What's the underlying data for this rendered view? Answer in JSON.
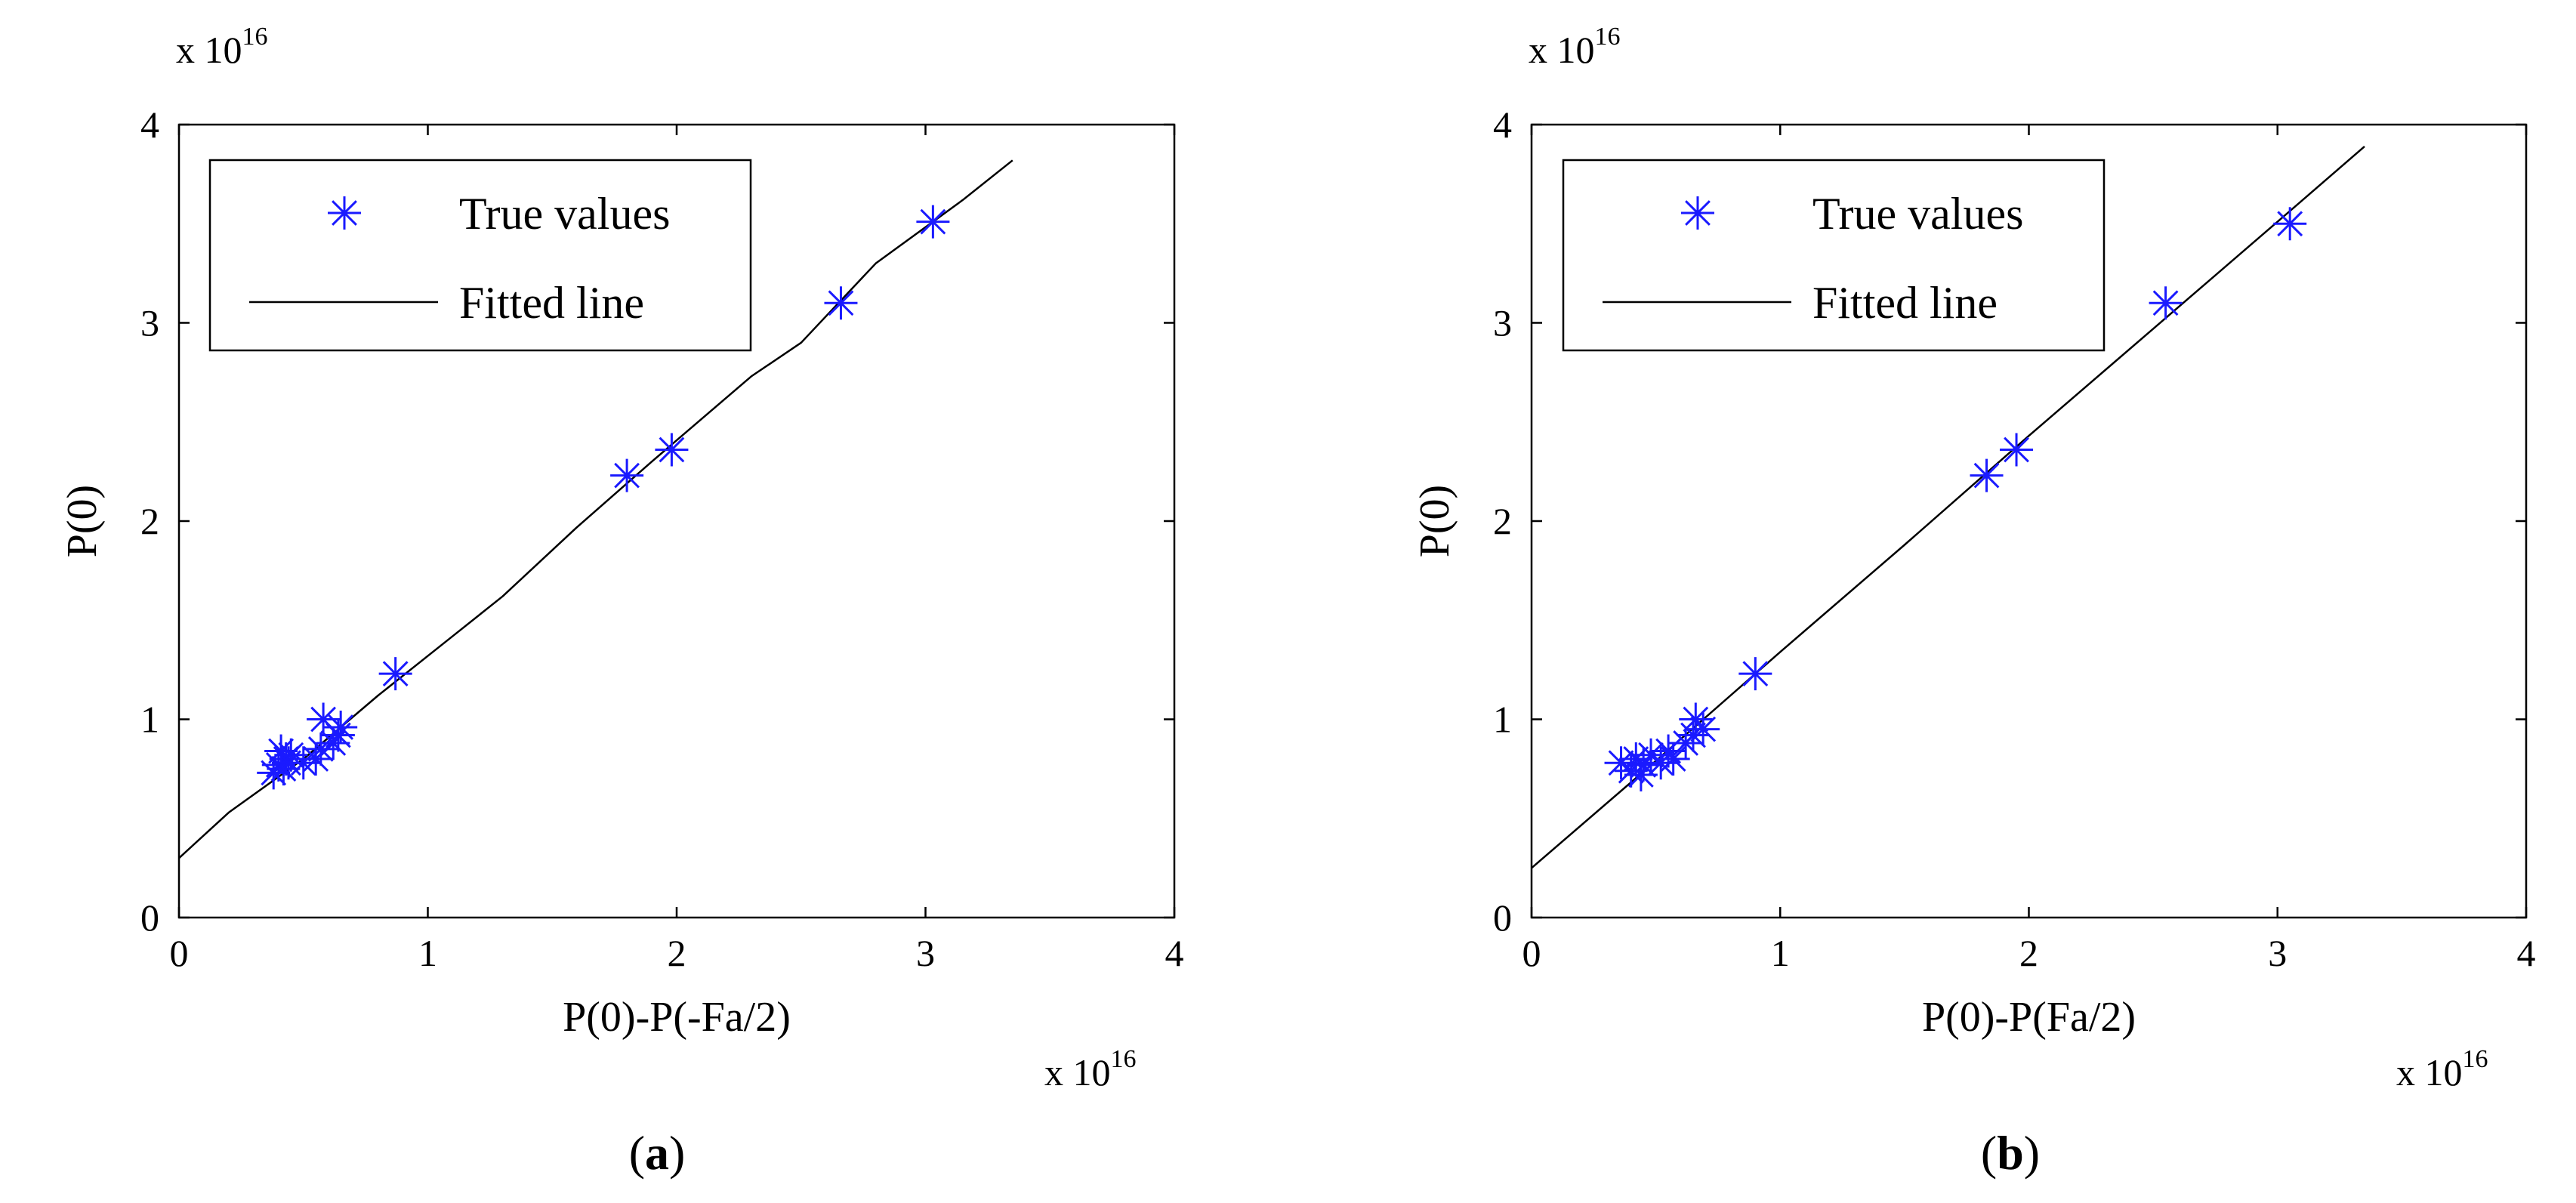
{
  "chart_data": [
    {
      "type": "scatter",
      "panel_label": "a",
      "xlabel": "P(0)-P(-Fa/2)",
      "ylabel": "P(0)",
      "x_multiplier": "x 10",
      "x_multiplier_exp": "16",
      "y_multiplier": "x 10",
      "y_multiplier_exp": "16",
      "xlim": [
        0,
        4
      ],
      "ylim": [
        0,
        4
      ],
      "xticks": [
        "0",
        "1",
        "2",
        "3",
        "4"
      ],
      "yticks": [
        "0",
        "1",
        "2",
        "3",
        "4"
      ],
      "grid": false,
      "legend_position": "top-left",
      "colors": {
        "points": "#1a1aff",
        "line": "#000000"
      },
      "series": [
        {
          "name": "True values",
          "kind": "markers",
          "marker": "asterisk",
          "x": [
            0.38,
            0.4,
            0.41,
            0.42,
            0.43,
            0.44,
            0.45,
            0.5,
            0.55,
            0.57,
            0.58,
            0.62,
            0.64,
            0.65,
            0.87,
            1.8,
            1.98,
            2.66,
            3.03
          ],
          "y": [
            0.73,
            0.77,
            0.84,
            0.75,
            0.8,
            0.78,
            0.82,
            0.78,
            0.8,
            0.85,
            1.0,
            0.88,
            0.92,
            0.96,
            1.23,
            2.23,
            2.36,
            3.1,
            3.51
          ]
        },
        {
          "name": "Fitted line",
          "kind": "line",
          "x": [
            0,
            0.2,
            0.5,
            0.8,
            1.1,
            1.3,
            1.6,
            1.9,
            2.3,
            2.5,
            2.8,
            3.15,
            3.35
          ],
          "y": [
            0.3,
            0.53,
            0.8,
            1.12,
            1.42,
            1.62,
            1.97,
            2.3,
            2.73,
            2.9,
            3.3,
            3.62,
            3.82
          ]
        }
      ]
    },
    {
      "type": "scatter",
      "panel_label": "b",
      "xlabel": "P(0)-P(Fa/2)",
      "ylabel": "P(0)",
      "x_multiplier": "x 10",
      "x_multiplier_exp": "16",
      "y_multiplier": "x 10",
      "y_multiplier_exp": "16",
      "xlim": [
        0,
        4
      ],
      "ylim": [
        0,
        4
      ],
      "xticks": [
        "0",
        "1",
        "2",
        "3",
        "4"
      ],
      "yticks": [
        "0",
        "1",
        "2",
        "3",
        "4"
      ],
      "grid": false,
      "legend_position": "top-left",
      "colors": {
        "points": "#1a1aff",
        "line": "#000000"
      },
      "series": [
        {
          "name": "True values",
          "kind": "markers",
          "marker": "asterisk",
          "x": [
            0.36,
            0.4,
            0.42,
            0.44,
            0.45,
            0.48,
            0.52,
            0.55,
            0.57,
            0.62,
            0.65,
            0.66,
            0.69,
            0.9,
            1.83,
            1.95,
            2.55,
            3.05
          ],
          "y": [
            0.78,
            0.74,
            0.8,
            0.72,
            0.77,
            0.82,
            0.78,
            0.84,
            0.8,
            0.88,
            0.92,
            1.0,
            0.95,
            1.23,
            2.23,
            2.36,
            3.1,
            3.5
          ]
        },
        {
          "name": "Fitted line",
          "kind": "line",
          "x": [
            0,
            0.5,
            1.0,
            1.5,
            2.0,
            2.5,
            3.0,
            3.35
          ],
          "y": [
            0.25,
            0.79,
            1.34,
            1.88,
            2.43,
            2.97,
            3.51,
            3.89
          ]
        }
      ]
    }
  ]
}
